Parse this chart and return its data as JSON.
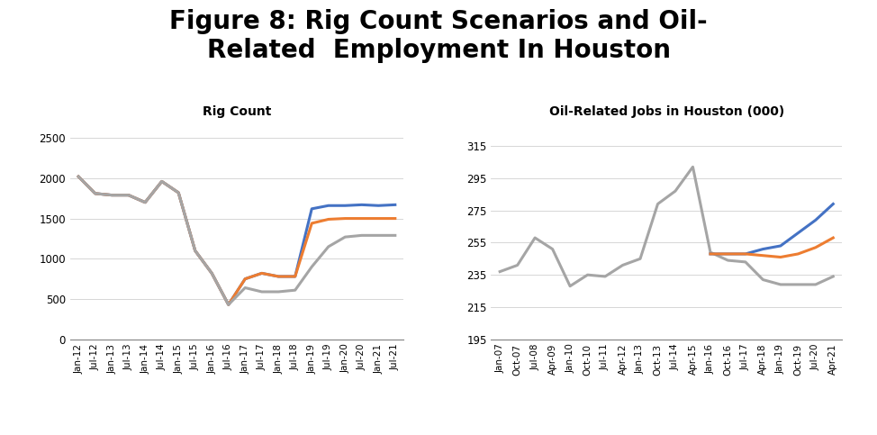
{
  "title": "Figure 8: Rig Count Scenarios and Oil-\nRelated  Employment In Houston",
  "title_fontsize": 20,
  "title_fontweight": "bold",
  "left_title": "Rig Count",
  "right_title": "Oil-Related Jobs in Houston (000)",
  "subtitle_fontsize": 10,
  "subtitle_fontweight": "bold",
  "colors": {
    "high": "#4472C4",
    "medium": "#ED7D31",
    "low": "#A5A5A5"
  },
  "rig_xticks": [
    "Jan-12",
    "Jul-12",
    "Jan-13",
    "Jul-13",
    "Jan-14",
    "Jul-14",
    "Jan-15",
    "Jul-15",
    "Jan-16",
    "Jul-16",
    "Jan-17",
    "Jul-17",
    "Jan-18",
    "Jul-18",
    "Jan-19",
    "Jul-19",
    "Jan-20",
    "Jul-20",
    "Jan-21",
    "Jul-21"
  ],
  "rig_ylim": [
    0,
    2700
  ],
  "rig_yticks": [
    0,
    500,
    1000,
    1500,
    2000,
    2500
  ],
  "rig_high": [
    2020,
    1810,
    1790,
    1790,
    1700,
    1960,
    1820,
    1100,
    820,
    430,
    750,
    820,
    780,
    780,
    1620,
    1660,
    1660,
    1670,
    1660,
    1670
  ],
  "rig_medium": [
    2020,
    1810,
    1790,
    1790,
    1700,
    1960,
    1820,
    1100,
    820,
    430,
    750,
    820,
    780,
    780,
    1440,
    1490,
    1500,
    1500,
    1500,
    1500
  ],
  "rig_low": [
    2020,
    1810,
    1790,
    1790,
    1700,
    1960,
    1820,
    1100,
    820,
    430,
    640,
    590,
    590,
    610,
    900,
    1150,
    1270,
    1290,
    1290,
    1290
  ],
  "jobs_xticks": [
    "Jan-07",
    "Oct-07",
    "Jul-08",
    "Apr-09",
    "Jan-10",
    "Oct-10",
    "Jul-11",
    "Apr-12",
    "Jan-13",
    "Oct-13",
    "Jul-14",
    "Apr-15",
    "Jan-16",
    "Oct-16",
    "Jul-17",
    "Apr-18",
    "Jan-19",
    "Oct-19",
    "Jul-20",
    "Apr-21"
  ],
  "jobs_ylim": [
    195,
    330
  ],
  "jobs_yticks": [
    195,
    215,
    235,
    255,
    275,
    295,
    315
  ],
  "jobs_high": [
    null,
    null,
    null,
    null,
    null,
    null,
    null,
    null,
    null,
    null,
    null,
    null,
    248,
    248,
    248,
    251,
    253,
    261,
    269,
    279
  ],
  "jobs_medium": [
    null,
    null,
    null,
    null,
    null,
    null,
    null,
    null,
    null,
    null,
    null,
    null,
    248,
    248,
    248,
    247,
    246,
    248,
    252,
    258
  ],
  "jobs_low": [
    237,
    241,
    258,
    251,
    228,
    235,
    234,
    241,
    245,
    279,
    287,
    302,
    249,
    244,
    243,
    232,
    229,
    229,
    229,
    234
  ],
  "lw": 2.2
}
